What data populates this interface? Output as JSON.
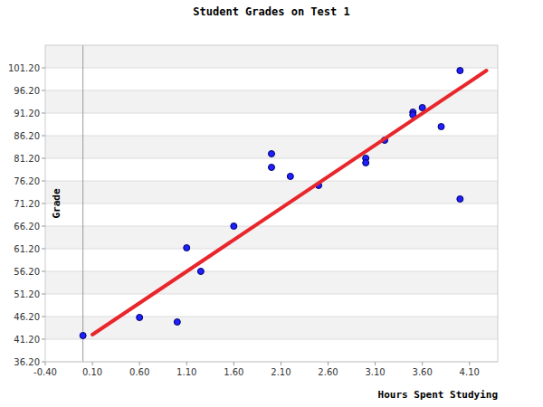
{
  "chart_data": {
    "type": "scatter",
    "title": "Student Grades on Test 1",
    "x_label": "Hours Spent Studying",
    "y_label": "Grade",
    "xlim": [
      -0.4,
      4.4
    ],
    "ylim": [
      36.2,
      106.2
    ],
    "xticks": [
      {
        "value": -0.4,
        "label": "-0.40"
      },
      {
        "value": 0.1,
        "label": "0.10"
      },
      {
        "value": 0.6,
        "label": "0.60"
      },
      {
        "value": 1.1,
        "label": "1.10"
      },
      {
        "value": 1.6,
        "label": "1.60"
      },
      {
        "value": 2.1,
        "label": "2.10"
      },
      {
        "value": 2.6,
        "label": "2.60"
      },
      {
        "value": 3.1,
        "label": "3.10"
      },
      {
        "value": 3.6,
        "label": "3.60"
      },
      {
        "value": 4.1,
        "label": "4.10"
      }
    ],
    "yticks": [
      {
        "value": 36.2,
        "label": "36.20"
      },
      {
        "value": 41.2,
        "label": "41.20"
      },
      {
        "value": 46.2,
        "label": "46.20"
      },
      {
        "value": 51.2,
        "label": "51.20"
      },
      {
        "value": 56.2,
        "label": "56.20"
      },
      {
        "value": 61.2,
        "label": "61.20"
      },
      {
        "value": 66.2,
        "label": "66.20"
      },
      {
        "value": 71.2,
        "label": "71.20"
      },
      {
        "value": 76.2,
        "label": "76.20"
      },
      {
        "value": 81.2,
        "label": "81.20"
      },
      {
        "value": 86.2,
        "label": "86.20"
      },
      {
        "value": 91.2,
        "label": "91.20"
      },
      {
        "value": 96.2,
        "label": "96.20"
      },
      {
        "value": 101.2,
        "label": "101.20"
      }
    ],
    "grid": true,
    "series": [
      {
        "type": "scatter",
        "marker": "circle",
        "color": "#1f1fff",
        "x": [
          0,
          0.6,
          1.0,
          1.1,
          1.25,
          1.6,
          2.0,
          2.0,
          2.2,
          2.5,
          3.0,
          3.0,
          3.2,
          3.5,
          3.5,
          3.6,
          3.8,
          4.0,
          4.0
        ],
        "values": [
          42,
          46,
          45,
          61.4,
          56.2,
          66.2,
          82.2,
          79.2,
          77.2,
          75.2,
          81.2,
          80.2,
          85.2,
          91.4,
          90.8,
          92.4,
          88.2,
          100.6,
          72.2
        ]
      },
      {
        "type": "line",
        "line_style": "solid",
        "color": "#e8262b",
        "x": [
          0.1,
          4.28
        ],
        "values": [
          42.2,
          100.6
        ]
      }
    ]
  }
}
